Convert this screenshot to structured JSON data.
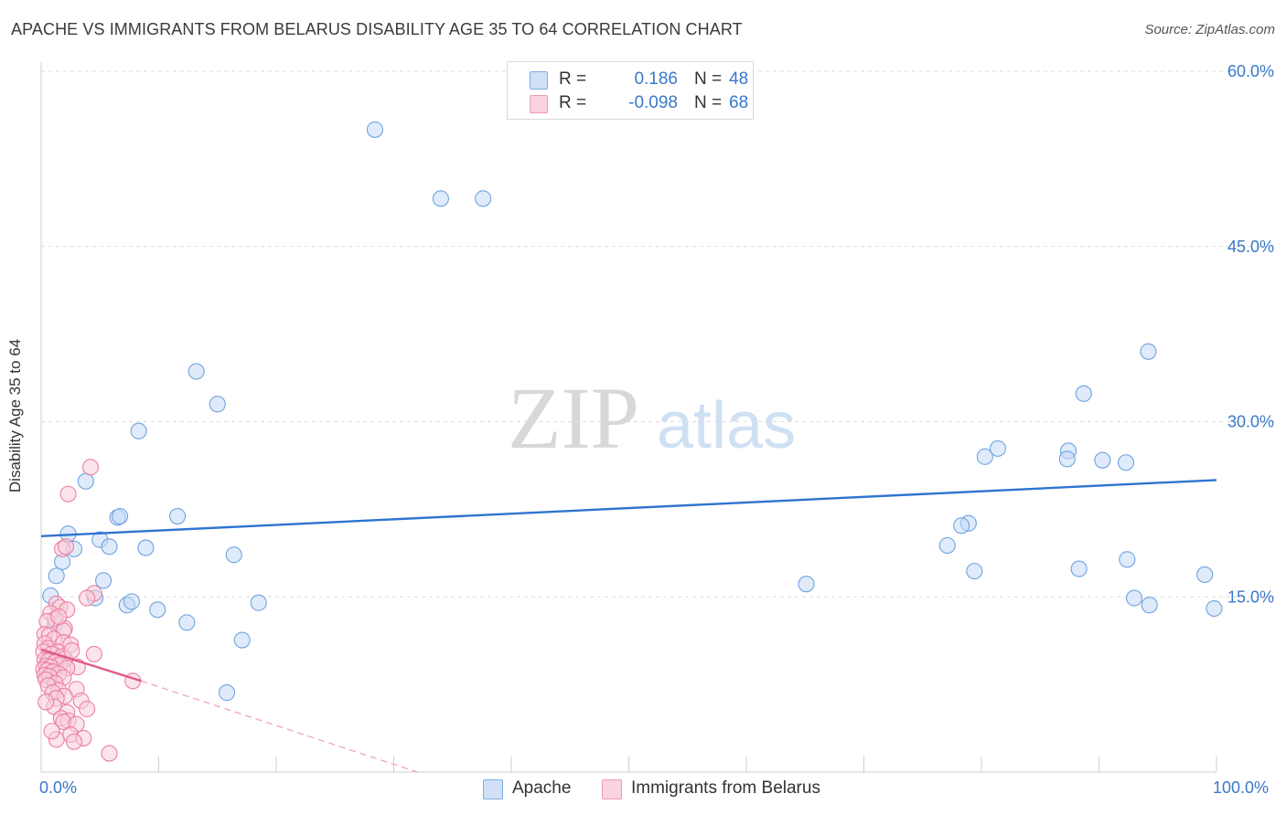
{
  "title": "APACHE VS IMMIGRANTS FROM BELARUS DISABILITY AGE 35 TO 64 CORRELATION CHART",
  "source": "Source: ZipAtlas.com",
  "watermark": {
    "zip": "ZIP",
    "atlas": "atlas"
  },
  "legend_top": {
    "rows": [
      {
        "r_label": "R =",
        "r_value": "0.186",
        "n_label": "N =",
        "n_value": "48",
        "color": "#a8c8f0"
      },
      {
        "r_label": "R =",
        "r_value": "-0.098",
        "n_label": "N =",
        "n_value": "68",
        "color": "#f5b8cb"
      }
    ]
  },
  "legend_bottom": [
    {
      "label": "Apache",
      "color": "#a8c8f0"
    },
    {
      "label": "Immigrants from Belarus",
      "color": "#f5b8cb"
    }
  ],
  "chart_data": {
    "type": "scatter",
    "title": "APACHE VS IMMIGRANTS FROM BELARUS DISABILITY AGE 35 TO 64 CORRELATION CHART",
    "xlabel": "",
    "ylabel": "Disability Age 35 to 64",
    "xlim": [
      0,
      100
    ],
    "ylim": [
      0,
      60
    ],
    "x_tick_labels": [
      "0.0%",
      "100.0%"
    ],
    "y_ticks": [
      15,
      30,
      45,
      60
    ],
    "y_tick_labels": [
      "15.0%",
      "30.0%",
      "45.0%",
      "60.0%"
    ],
    "grid": true,
    "legend_position": "top-center",
    "series": [
      {
        "name": "Apache",
        "color": "#6fa3df",
        "fill": "#c5dbf5",
        "trend": {
          "x": [
            0,
            100
          ],
          "y": [
            20.2,
            25.0
          ],
          "color": "#2f74cf"
        },
        "points": [
          [
            28.4,
            55.0
          ],
          [
            34.0,
            49.1
          ],
          [
            37.6,
            49.1
          ],
          [
            13.2,
            34.3
          ],
          [
            15.0,
            31.5
          ],
          [
            8.3,
            29.2
          ],
          [
            3.8,
            24.9
          ],
          [
            6.5,
            21.8
          ],
          [
            6.7,
            21.9
          ],
          [
            11.6,
            21.9
          ],
          [
            2.3,
            20.4
          ],
          [
            5.0,
            19.9
          ],
          [
            5.8,
            19.3
          ],
          [
            8.9,
            19.2
          ],
          [
            16.4,
            18.6
          ],
          [
            2.8,
            19.1
          ],
          [
            1.8,
            18.0
          ],
          [
            1.3,
            16.8
          ],
          [
            5.3,
            16.4
          ],
          [
            0.8,
            15.1
          ],
          [
            4.6,
            14.9
          ],
          [
            7.3,
            14.3
          ],
          [
            7.7,
            14.6
          ],
          [
            9.9,
            13.9
          ],
          [
            18.5,
            14.5
          ],
          [
            1.2,
            12.7
          ],
          [
            12.4,
            12.8
          ],
          [
            17.1,
            11.3
          ],
          [
            15.8,
            6.8
          ],
          [
            94.2,
            36.0
          ],
          [
            88.7,
            32.4
          ],
          [
            81.4,
            27.7
          ],
          [
            80.3,
            27.0
          ],
          [
            87.4,
            27.5
          ],
          [
            87.3,
            26.8
          ],
          [
            90.3,
            26.7
          ],
          [
            92.3,
            26.5
          ],
          [
            78.9,
            21.3
          ],
          [
            78.3,
            21.1
          ],
          [
            77.1,
            19.4
          ],
          [
            79.4,
            17.2
          ],
          [
            88.3,
            17.4
          ],
          [
            92.4,
            18.2
          ],
          [
            99.0,
            16.9
          ],
          [
            65.1,
            16.1
          ],
          [
            93.0,
            14.9
          ],
          [
            94.3,
            14.3
          ],
          [
            99.8,
            14.0
          ]
        ]
      },
      {
        "name": "Immigrants from Belarus",
        "color": "#ec7fa1",
        "fill": "#f8cddb",
        "trend": {
          "x": [
            0,
            8.5
          ],
          "y": [
            10.5,
            7.8
          ],
          "color": "#e05a88"
        },
        "trend_extension": {
          "x": [
            8.5,
            32
          ],
          "y": [
            7.8,
            0
          ],
          "color": "#f0a3bd"
        },
        "points": [
          [
            4.2,
            26.1
          ],
          [
            2.3,
            23.8
          ],
          [
            1.8,
            19.1
          ],
          [
            2.1,
            19.3
          ],
          [
            4.5,
            15.3
          ],
          [
            3.9,
            14.9
          ],
          [
            1.3,
            14.4
          ],
          [
            1.6,
            14.1
          ],
          [
            2.2,
            13.9
          ],
          [
            0.8,
            13.6
          ],
          [
            1.2,
            13.1
          ],
          [
            0.5,
            12.9
          ],
          [
            2.0,
            12.3
          ],
          [
            1.9,
            12.1
          ],
          [
            0.3,
            11.8
          ],
          [
            0.7,
            11.7
          ],
          [
            1.1,
            11.4
          ],
          [
            0.3,
            11.0
          ],
          [
            1.9,
            11.1
          ],
          [
            2.5,
            10.9
          ],
          [
            0.6,
            10.6
          ],
          [
            1.4,
            10.3
          ],
          [
            0.2,
            10.3
          ],
          [
            0.9,
            10.1
          ],
          [
            4.5,
            10.1
          ],
          [
            1.8,
            9.9
          ],
          [
            2.0,
            9.7
          ],
          [
            0.3,
            9.6
          ],
          [
            0.6,
            9.5
          ],
          [
            1.2,
            9.4
          ],
          [
            1.6,
            9.2
          ],
          [
            0.4,
            9.1
          ],
          [
            0.8,
            9.0
          ],
          [
            3.1,
            9.0
          ],
          [
            2.2,
            8.9
          ],
          [
            0.2,
            8.8
          ],
          [
            0.5,
            8.7
          ],
          [
            1.0,
            8.6
          ],
          [
            1.5,
            8.4
          ],
          [
            0.3,
            8.3
          ],
          [
            0.7,
            8.2
          ],
          [
            1.9,
            8.1
          ],
          [
            7.8,
            7.8
          ],
          [
            0.4,
            7.9
          ],
          [
            1.2,
            7.6
          ],
          [
            0.6,
            7.4
          ],
          [
            3.0,
            7.1
          ],
          [
            1.5,
            7.0
          ],
          [
            1.0,
            6.8
          ],
          [
            2.0,
            6.5
          ],
          [
            1.3,
            6.3
          ],
          [
            3.4,
            6.1
          ],
          [
            1.1,
            5.6
          ],
          [
            3.9,
            5.4
          ],
          [
            2.2,
            5.1
          ],
          [
            1.7,
            4.6
          ],
          [
            2.3,
            4.4
          ],
          [
            1.9,
            4.3
          ],
          [
            3.0,
            4.1
          ],
          [
            2.5,
            3.2
          ],
          [
            3.6,
            2.9
          ],
          [
            2.8,
            2.6
          ],
          [
            1.3,
            2.8
          ],
          [
            5.8,
            1.6
          ],
          [
            0.9,
            3.5
          ],
          [
            0.4,
            6.0
          ],
          [
            2.6,
            10.4
          ],
          [
            1.5,
            13.3
          ]
        ]
      }
    ]
  }
}
